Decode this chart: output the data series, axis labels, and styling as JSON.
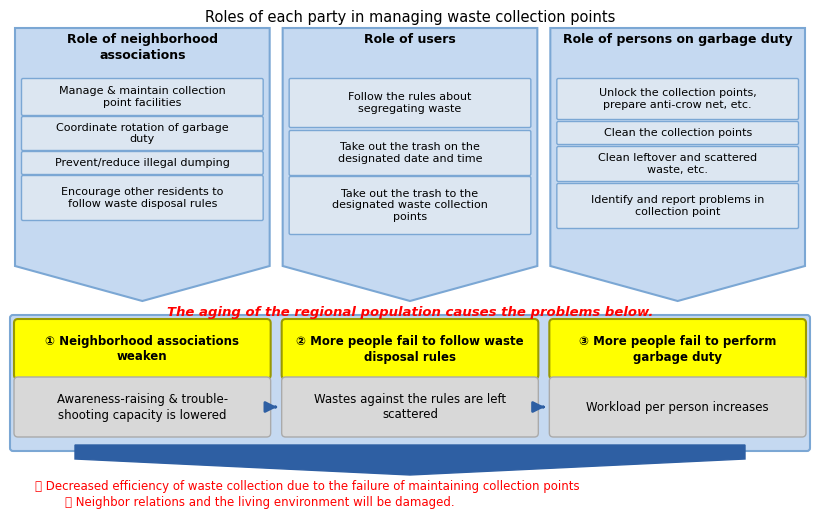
{
  "title": "Roles of each party in managing waste collection points",
  "title_fontsize": 10.5,
  "bg_color": "#ffffff",
  "arrow_blue": "#2E5FA3",
  "panel_blue_fill": "#C5D9F1",
  "panel_blue_edge": "#7BA7D4",
  "inner_box_fill": "#DCE6F1",
  "inner_box_edge": "#7BA7D4",
  "yellow_fill": "#FFFF00",
  "yellow_edge": "#999900",
  "gray_fill": "#D8D8D8",
  "gray_edge": "#AAAAAA",
  "red_text": "#FF0000",
  "black_text": "#000000",
  "col1_header": "Role of neighborhood\nassociations",
  "col2_header": "Role of users",
  "col3_header": "Role of persons on garbage duty",
  "col1_items": [
    "Manage & maintain collection\npoint facilities",
    "Coordinate rotation of garbage\nduty",
    "Prevent/reduce illegal dumping",
    "Encourage other residents to\nfollow waste disposal rules"
  ],
  "col2_items": [
    "Follow the rules about\nsegregating waste",
    "Take out the trash on the\ndesignated date and time",
    "Take out the trash to the\ndesignated waste collection\npoints"
  ],
  "col3_items": [
    "Unlock the collection points,\nprepare anti-crow net, etc.",
    "Clean the collection points",
    "Clean leftover and scattered\nwaste, etc.",
    "Identify and report problems in\ncollection point"
  ],
  "aging_text": "The aging of the regional population causes the problems below.",
  "yellow_boxes": [
    "① Neighborhood associations\nweaken",
    "② More people fail to follow waste\ndisposal rules",
    "③ More people fail to perform\ngarbage duty"
  ],
  "gray_boxes": [
    "Awareness-raising & trouble-\nshooting capacity is lowered",
    "Wastes against the rules are left\nscattered",
    "Workload per person increases"
  ],
  "bottom_text1": "・ Decreased efficiency of waste collection due to the failure of maintaining collection points",
  "bottom_text2": "・ Neighbor relations and the living environment will be damaged."
}
